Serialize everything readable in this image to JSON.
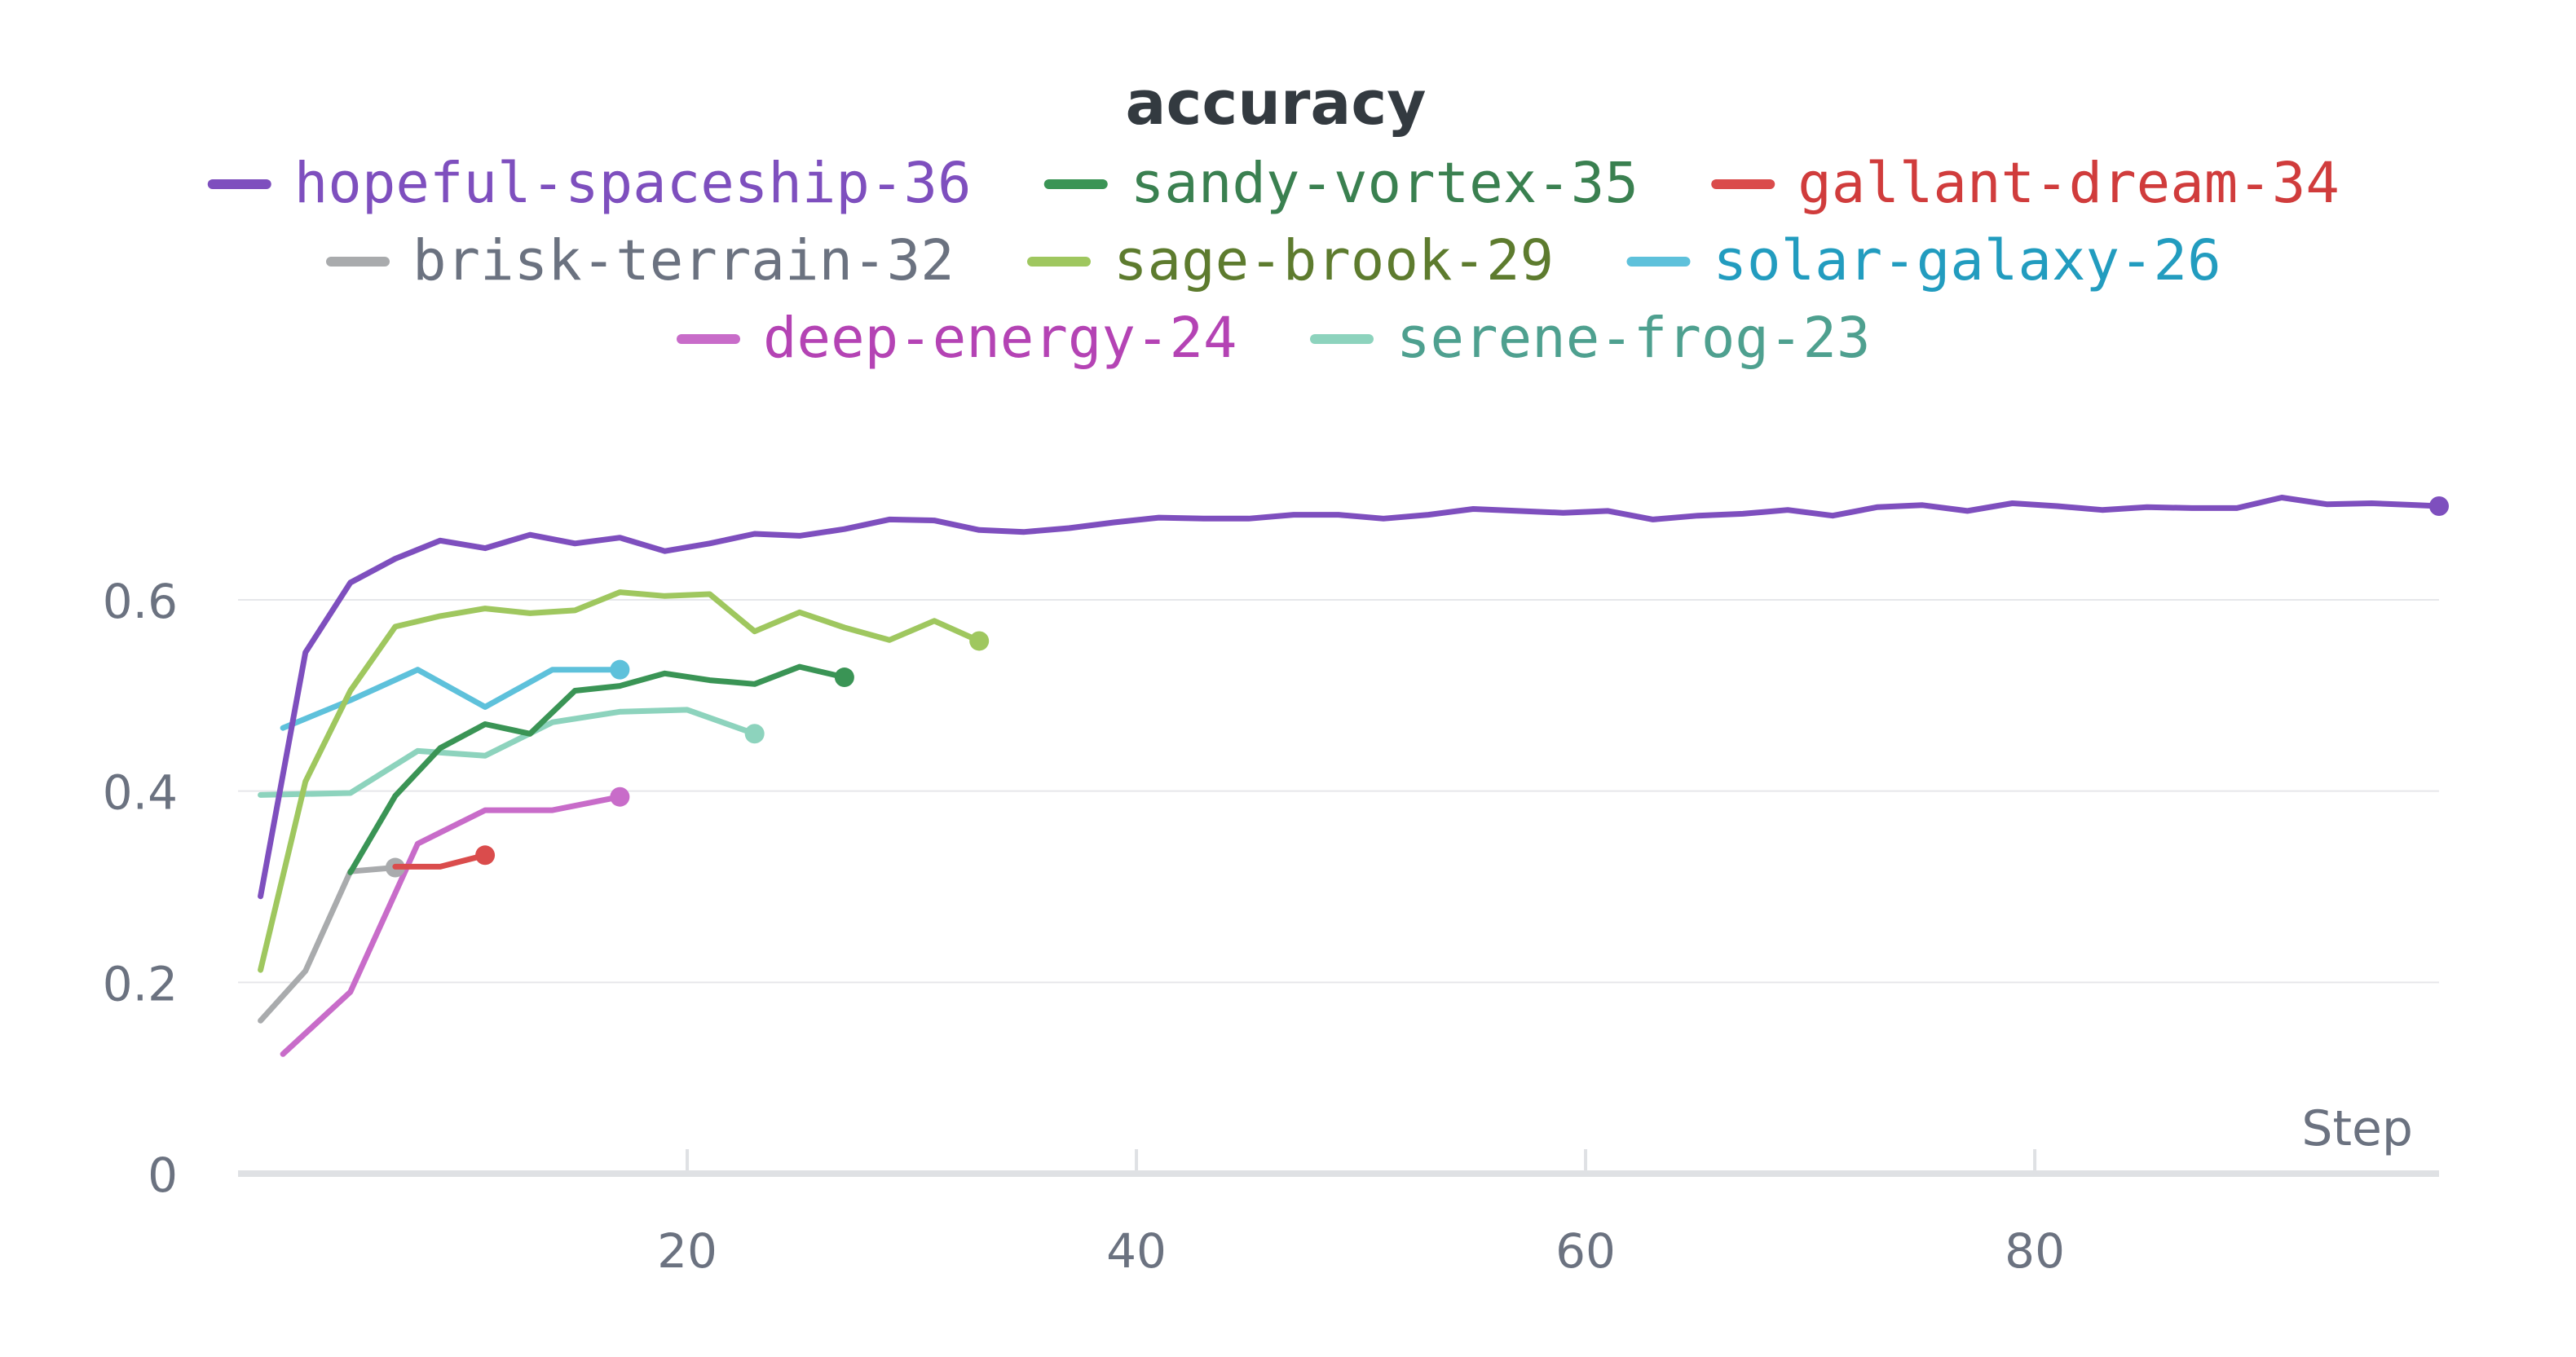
{
  "chart_data": {
    "type": "line",
    "title": "accuracy",
    "xlabel": "Step",
    "ylabel": "",
    "xlim": [
      0,
      98
    ],
    "ylim": [
      0,
      0.75
    ],
    "x_ticks": [
      20,
      40,
      60,
      80
    ],
    "y_ticks": [
      0,
      0.2,
      0.4,
      0.6
    ],
    "x_tick_labels": [
      "20",
      "40",
      "60",
      "80"
    ],
    "y_tick_labels": [
      "0",
      "0.2",
      "0.4",
      "0.6"
    ],
    "grid": "horizontal",
    "legend": "top",
    "series": [
      {
        "name": "hopeful-spaceship-36",
        "color": "#7e4fbe",
        "text_color": "#7e4fbe",
        "x": [
          1,
          3,
          5,
          7,
          9,
          11,
          13,
          15,
          17,
          19,
          21,
          23,
          25,
          27,
          29,
          31,
          33,
          35,
          37,
          39,
          41,
          43,
          45,
          47,
          49,
          51,
          53,
          55,
          57,
          59,
          61,
          63,
          65,
          67,
          69,
          71,
          73,
          75,
          77,
          79,
          81,
          83,
          85,
          87,
          89,
          91,
          93,
          95,
          97,
          98
        ],
        "values": [
          0.29,
          0.545,
          0.618,
          0.643,
          0.662,
          0.654,
          0.668,
          0.659,
          0.665,
          0.651,
          0.659,
          0.669,
          0.667,
          0.674,
          0.684,
          0.683,
          0.673,
          0.671,
          0.675,
          0.681,
          0.686,
          0.685,
          0.685,
          0.689,
          0.689,
          0.685,
          0.689,
          0.695,
          0.693,
          0.691,
          0.693,
          0.684,
          0.688,
          0.69,
          0.694,
          0.688,
          0.697,
          0.699,
          0.693,
          0.701,
          0.698,
          0.694,
          0.697,
          0.696,
          0.696,
          0.707,
          0.7,
          0.701,
          0.699,
          0.698
        ]
      },
      {
        "name": "sandy-vortex-35",
        "color": "#3a9455",
        "text_color": "#3a8050",
        "x": [
          5,
          7,
          9,
          11,
          13,
          15,
          17,
          19,
          21,
          23,
          25,
          27
        ],
        "values": [
          0.315,
          0.395,
          0.445,
          0.47,
          0.46,
          0.505,
          0.51,
          0.523,
          0.516,
          0.512,
          0.53,
          0.519
        ]
      },
      {
        "name": "gallant-dream-34",
        "color": "#da4c4c",
        "text_color": "#d03c3c",
        "x": [
          7,
          9,
          11
        ],
        "values": [
          0.321,
          0.321,
          0.333
        ]
      },
      {
        "name": "brisk-terrain-32",
        "color": "#a9abad",
        "text_color": "#6b7280",
        "x": [
          1,
          3,
          5,
          7
        ],
        "values": [
          0.16,
          0.212,
          0.316,
          0.32
        ]
      },
      {
        "name": "sage-brook-29",
        "color": "#9fc75f",
        "text_color": "#5d7b2e",
        "x": [
          1,
          3,
          5,
          7,
          9,
          11,
          13,
          15,
          17,
          19,
          21,
          23,
          25,
          27,
          29,
          31,
          33
        ],
        "values": [
          0.213,
          0.41,
          0.505,
          0.572,
          0.583,
          0.591,
          0.586,
          0.589,
          0.608,
          0.604,
          0.606,
          0.567,
          0.587,
          0.571,
          0.558,
          0.578,
          0.557
        ]
      },
      {
        "name": "solar-galaxy-26",
        "color": "#5ec1db",
        "text_color": "#229cbf",
        "x": [
          2,
          5,
          8,
          11,
          14,
          17
        ],
        "values": [
          0.466,
          0.495,
          0.527,
          0.488,
          0.527,
          0.527
        ]
      },
      {
        "name": "deep-energy-24",
        "color": "#c86cc9",
        "text_color": "#b443b4",
        "x": [
          2,
          5,
          8,
          11,
          14,
          17
        ],
        "values": [
          0.125,
          0.19,
          0.345,
          0.38,
          0.38,
          0.394
        ]
      },
      {
        "name": "serene-frog-23",
        "color": "#8dd3bd",
        "text_color": "#4ea08f",
        "x": [
          1,
          5,
          8,
          11,
          14,
          17,
          20,
          23
        ],
        "values": [
          0.396,
          0.398,
          0.442,
          0.437,
          0.472,
          0.483,
          0.485,
          0.46
        ]
      }
    ]
  }
}
